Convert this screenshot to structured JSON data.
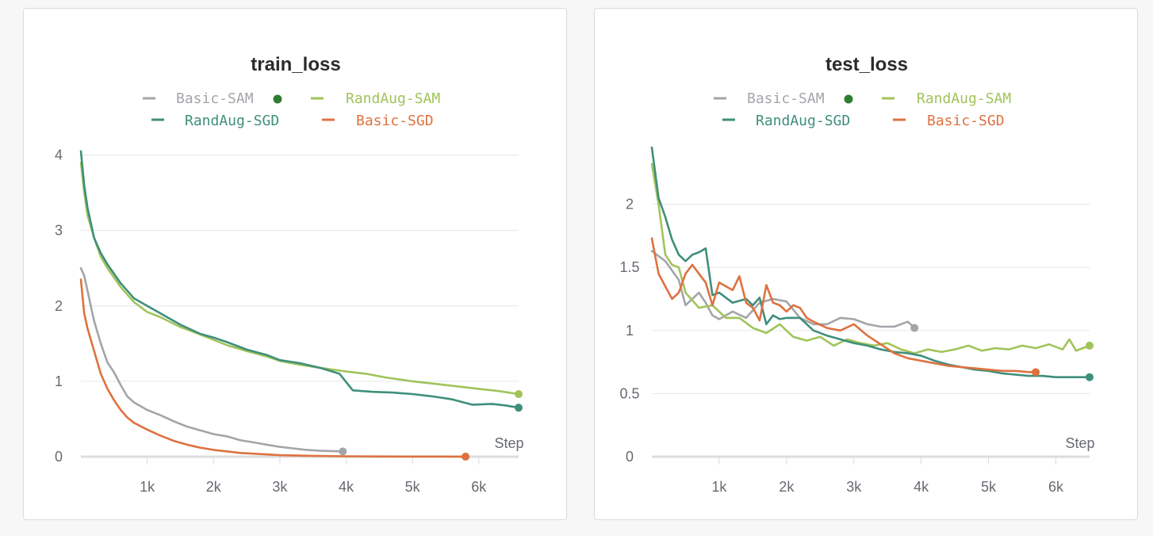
{
  "colors": {
    "Basic-SAM": "#a3a5a9",
    "RandAug-SAM": "#a1c45a",
    "RandAug-SGD": "#3f8f7c",
    "Basic-SGD": "#dd7240",
    "status_dot": "#2e7d32"
  },
  "legend_status_icon": "filled-circle-icon",
  "chart_data": [
    {
      "id": "train",
      "type": "line",
      "title": "train_loss",
      "xlabel": "Step",
      "ylabel": "",
      "xlim": [
        0,
        6600
      ],
      "ylim": [
        0,
        4.1
      ],
      "xticks": [
        1000,
        2000,
        3000,
        4000,
        5000,
        6000
      ],
      "xtick_labels": [
        "1k",
        "2k",
        "3k",
        "4k",
        "5k",
        "6k"
      ],
      "yticks": [
        0,
        1,
        2,
        3,
        4
      ],
      "ytick_labels": [
        "0",
        "1",
        "2",
        "3",
        "4"
      ],
      "grid": true,
      "legend": "top-center",
      "series": [
        {
          "name": "Basic-SAM",
          "x": [
            0,
            50,
            100,
            150,
            200,
            300,
            400,
            500,
            600,
            700,
            800,
            1000,
            1200,
            1400,
            1600,
            1800,
            2000,
            2200,
            2400,
            2600,
            2800,
            3000,
            3200,
            3400,
            3600,
            3800,
            3950
          ],
          "y": [
            2.5,
            2.4,
            2.2,
            2.0,
            1.8,
            1.5,
            1.25,
            1.12,
            0.95,
            0.8,
            0.72,
            0.62,
            0.55,
            0.47,
            0.4,
            0.35,
            0.3,
            0.27,
            0.22,
            0.19,
            0.16,
            0.13,
            0.11,
            0.09,
            0.08,
            0.075,
            0.07
          ]
        },
        {
          "name": "RandAug-SAM",
          "x": [
            0,
            50,
            100,
            200,
            300,
            400,
            600,
            800,
            1000,
            1200,
            1500,
            1800,
            2000,
            2200,
            2500,
            2800,
            3000,
            3300,
            3600,
            4000,
            4300,
            4600,
            5000,
            5300,
            5600,
            6000,
            6300,
            6600
          ],
          "y": [
            3.9,
            3.5,
            3.2,
            2.9,
            2.65,
            2.5,
            2.25,
            2.05,
            1.92,
            1.85,
            1.72,
            1.62,
            1.55,
            1.48,
            1.4,
            1.33,
            1.27,
            1.22,
            1.18,
            1.13,
            1.1,
            1.05,
            1.0,
            0.97,
            0.94,
            0.9,
            0.87,
            0.83
          ]
        },
        {
          "name": "RandAug-SGD",
          "x": [
            0,
            50,
            100,
            200,
            300,
            400,
            600,
            800,
            1000,
            1200,
            1500,
            1800,
            2000,
            2200,
            2500,
            2800,
            3000,
            3300,
            3600,
            3900,
            4100,
            4400,
            4700,
            5000,
            5300,
            5600,
            5900,
            6200,
            6400,
            6600
          ],
          "y": [
            4.05,
            3.6,
            3.3,
            2.9,
            2.7,
            2.55,
            2.3,
            2.1,
            2.0,
            1.9,
            1.75,
            1.63,
            1.58,
            1.52,
            1.42,
            1.35,
            1.28,
            1.24,
            1.18,
            1.1,
            0.88,
            0.86,
            0.85,
            0.83,
            0.8,
            0.76,
            0.69,
            0.7,
            0.68,
            0.65
          ]
        },
        {
          "name": "Basic-SGD",
          "x": [
            0,
            50,
            100,
            200,
            300,
            400,
            500,
            600,
            700,
            800,
            1000,
            1200,
            1400,
            1600,
            1800,
            2000,
            2200,
            2400,
            2600,
            2800,
            3000,
            3300,
            3600,
            4000,
            4500,
            5000,
            5500,
            5800
          ],
          "y": [
            2.35,
            1.9,
            1.7,
            1.4,
            1.1,
            0.9,
            0.75,
            0.62,
            0.52,
            0.45,
            0.36,
            0.28,
            0.21,
            0.16,
            0.12,
            0.09,
            0.07,
            0.05,
            0.04,
            0.03,
            0.02,
            0.015,
            0.01,
            0.005,
            0.003,
            0.002,
            0.002,
            0.001
          ]
        }
      ]
    },
    {
      "id": "test",
      "type": "line",
      "title": "test_loss",
      "xlabel": "Step",
      "ylabel": "",
      "xlim": [
        0,
        6500
      ],
      "ylim": [
        0,
        2.45
      ],
      "xticks": [
        1000,
        2000,
        3000,
        4000,
        5000,
        6000
      ],
      "xtick_labels": [
        "1k",
        "2k",
        "3k",
        "4k",
        "5k",
        "6k"
      ],
      "yticks": [
        0,
        0.5,
        1,
        1.5,
        2
      ],
      "ytick_labels": [
        "0",
        "0.5",
        "1",
        "1.5",
        "2"
      ],
      "grid": true,
      "legend": "top-center",
      "series": [
        {
          "name": "Basic-SAM",
          "x": [
            0,
            200,
            400,
            500,
            600,
            700,
            800,
            900,
            1000,
            1200,
            1400,
            1600,
            1800,
            2000,
            2200,
            2400,
            2600,
            2800,
            3000,
            3200,
            3400,
            3600,
            3800,
            3900
          ],
          "y": [
            1.63,
            1.55,
            1.4,
            1.2,
            1.25,
            1.3,
            1.22,
            1.12,
            1.09,
            1.15,
            1.1,
            1.22,
            1.25,
            1.23,
            1.1,
            1.05,
            1.05,
            1.1,
            1.09,
            1.05,
            1.03,
            1.03,
            1.07,
            1.02
          ]
        },
        {
          "name": "RandAug-SAM",
          "x": [
            0,
            100,
            200,
            300,
            400,
            500,
            700,
            900,
            1100,
            1300,
            1500,
            1700,
            1900,
            2100,
            2300,
            2500,
            2700,
            2900,
            3100,
            3300,
            3500,
            3700,
            3900,
            4100,
            4300,
            4500,
            4700,
            4900,
            5100,
            5300,
            5500,
            5700,
            5900,
            6100,
            6200,
            6300,
            6400,
            6500
          ],
          "y": [
            2.32,
            2.0,
            1.6,
            1.52,
            1.5,
            1.3,
            1.18,
            1.2,
            1.1,
            1.1,
            1.02,
            0.98,
            1.05,
            0.95,
            0.92,
            0.95,
            0.88,
            0.93,
            0.9,
            0.88,
            0.9,
            0.85,
            0.82,
            0.85,
            0.83,
            0.85,
            0.88,
            0.84,
            0.86,
            0.85,
            0.88,
            0.86,
            0.89,
            0.85,
            0.93,
            0.84,
            0.86,
            0.88
          ]
        },
        {
          "name": "RandAug-SGD",
          "x": [
            0,
            100,
            200,
            300,
            400,
            500,
            600,
            700,
            800,
            900,
            1000,
            1200,
            1400,
            1500,
            1600,
            1700,
            1800,
            1900,
            2000,
            2200,
            2400,
            2600,
            2800,
            3000,
            3200,
            3400,
            3600,
            3800,
            4000,
            4200,
            4400,
            4600,
            4800,
            5000,
            5200,
            5400,
            5600,
            5800,
            6000,
            6200,
            6400,
            6500
          ],
          "y": [
            2.45,
            2.05,
            1.9,
            1.72,
            1.6,
            1.55,
            1.6,
            1.62,
            1.65,
            1.28,
            1.3,
            1.22,
            1.25,
            1.2,
            1.26,
            1.05,
            1.12,
            1.09,
            1.1,
            1.1,
            1.0,
            0.96,
            0.93,
            0.9,
            0.88,
            0.85,
            0.83,
            0.82,
            0.8,
            0.76,
            0.73,
            0.71,
            0.69,
            0.68,
            0.66,
            0.65,
            0.64,
            0.64,
            0.63,
            0.63,
            0.63,
            0.63
          ]
        },
        {
          "name": "Basic-SGD",
          "x": [
            0,
            100,
            200,
            300,
            400,
            500,
            600,
            700,
            800,
            900,
            1000,
            1100,
            1200,
            1300,
            1400,
            1500,
            1600,
            1700,
            1800,
            1900,
            2000,
            2100,
            2200,
            2300,
            2400,
            2600,
            2800,
            3000,
            3200,
            3400,
            3600,
            3800,
            4000,
            4200,
            4400,
            4600,
            4800,
            5000,
            5200,
            5400,
            5600,
            5700
          ],
          "y": [
            1.73,
            1.45,
            1.35,
            1.25,
            1.3,
            1.45,
            1.52,
            1.45,
            1.38,
            1.2,
            1.38,
            1.35,
            1.32,
            1.43,
            1.22,
            1.18,
            1.08,
            1.36,
            1.22,
            1.2,
            1.15,
            1.2,
            1.18,
            1.1,
            1.07,
            1.02,
            1.0,
            1.05,
            0.96,
            0.89,
            0.82,
            0.78,
            0.76,
            0.74,
            0.72,
            0.71,
            0.7,
            0.69,
            0.68,
            0.68,
            0.67,
            0.67
          ]
        }
      ]
    }
  ]
}
